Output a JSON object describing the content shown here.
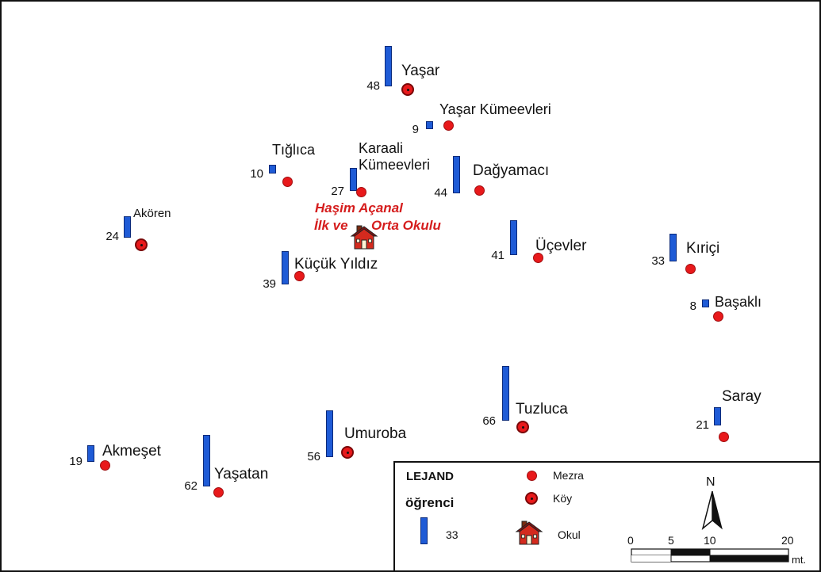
{
  "map": {
    "places": [
      {
        "name": "Yaşar",
        "students": "48",
        "type": "koy"
      },
      {
        "name": "Yaşar Kümeevleri",
        "students": "9",
        "type": "mezra"
      },
      {
        "name": "Tığlıca",
        "students": "10",
        "type": "mezra"
      },
      {
        "name": "Karaali Kümeevleri",
        "line1": "Karaali",
        "line2": "Kümeevleri",
        "students": "27",
        "type": "mezra"
      },
      {
        "name": "Dağyamacı",
        "students": "44",
        "type": "mezra"
      },
      {
        "name": "Akören",
        "students": "24",
        "type": "koy"
      },
      {
        "name": "Küçük Yıldız",
        "students": "39",
        "type": "mezra"
      },
      {
        "name": "Üçevler",
        "students": "41",
        "type": "mezra"
      },
      {
        "name": "Kıriçi",
        "students": "33",
        "type": "mezra"
      },
      {
        "name": "Başaklı",
        "students": "8",
        "type": "mezra"
      },
      {
        "name": "Tuzluca",
        "students": "66",
        "type": "koy"
      },
      {
        "name": "Saray",
        "students": "21",
        "type": "mezra"
      },
      {
        "name": "Umuroba",
        "students": "56",
        "type": "koy"
      },
      {
        "name": "Akmeşet",
        "students": "19",
        "type": "mezra"
      },
      {
        "name": "Yaşatan",
        "students": "62",
        "type": "mezra"
      }
    ],
    "school": {
      "line1": "Haşim Açanal",
      "line2a": "İlk ve",
      "line2b": "Orta Okulu"
    }
  },
  "legend": {
    "title": "LEJAND",
    "ogrenci": "öğrenci",
    "bar_value": "33",
    "mezra": "Mezra",
    "koy": "Köy",
    "okul": "Okul"
  },
  "north": "N",
  "scale": {
    "ticks": [
      "0",
      "5",
      "10",
      "20"
    ],
    "unit": "mt."
  },
  "colors": {
    "bar": "#1f5bd6",
    "settlement": "#e8191b",
    "school_label": "#d51d1d"
  }
}
